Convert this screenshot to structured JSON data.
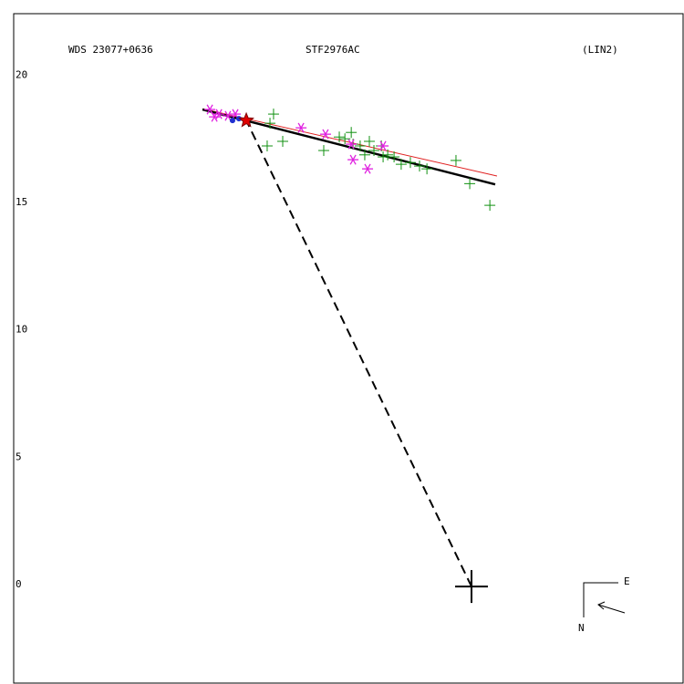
{
  "chart_data": {
    "type": "scatter",
    "title": "WDS 23077+0636",
    "subtitle": "STF2976AC",
    "annotation": "(LIN2)",
    "compass": {
      "east": "E",
      "north": "N"
    },
    "xlim": [
      -17.97,
      8.34
    ],
    "ylim": [
      -3.79,
      22.48
    ],
    "yticks": [
      0,
      5,
      10,
      15,
      20
    ],
    "series": [
      {
        "marker": "plus",
        "color": "#109010",
        "x": [
          -8.02,
          -7.77,
          -7.41,
          -5.8,
          -5.19,
          -4.72,
          -4.65,
          -4.19,
          -4.01,
          -3.83,
          -3.54,
          -3.29,
          -3.04,
          -2.76,
          -2.4,
          -2.04,
          -1.75,
          -0.61,
          -0.07,
          0.72,
          -7.91,
          -4.97,
          -4.37,
          -3.47
        ],
        "values": [
          17.29,
          18.54,
          17.47,
          17.11,
          17.64,
          17.82,
          17.36,
          16.94,
          17.47,
          17.11,
          17.29,
          16.94,
          16.86,
          16.57,
          16.64,
          16.5,
          16.39,
          16.72,
          15.81,
          14.96,
          18.18,
          17.57,
          17.29,
          16.86
        ]
      },
      {
        "marker": "asterisk",
        "color": "#e020e0",
        "x": [
          -6.69,
          -5.73,
          -4.65,
          -4.08,
          -3.47,
          -4.72,
          -10.27,
          -9.91,
          -9.56,
          -9.27,
          -10.09
        ],
        "values": [
          18.0,
          17.75,
          16.75,
          16.39,
          17.29,
          17.36,
          18.72,
          18.54,
          18.47,
          18.54,
          18.43
        ]
      },
      {
        "marker": "dot",
        "color": "#2030d0",
        "x": [
          -9.38,
          -9.13
        ],
        "values": [
          18.29,
          18.36
        ]
      }
    ],
    "lines": [
      {
        "color": "#e02020",
        "width": 1,
        "dash": false,
        "x": [
          -10.56,
          1.0
        ],
        "values": [
          18.75,
          16.11
        ]
      },
      {
        "color": "#000000",
        "width": 2.5,
        "dash": false,
        "x": [
          -10.56,
          0.93
        ],
        "values": [
          18.72,
          15.78
        ]
      },
      {
        "color": "#000000",
        "width": 2,
        "dash": true,
        "x": [
          0,
          -8.84
        ],
        "values": [
          0,
          18.29
        ]
      }
    ],
    "star": {
      "color": "#e00000",
      "x": -8.84,
      "value": 18.29
    },
    "origin": {
      "x": 0,
      "value": 0
    }
  }
}
